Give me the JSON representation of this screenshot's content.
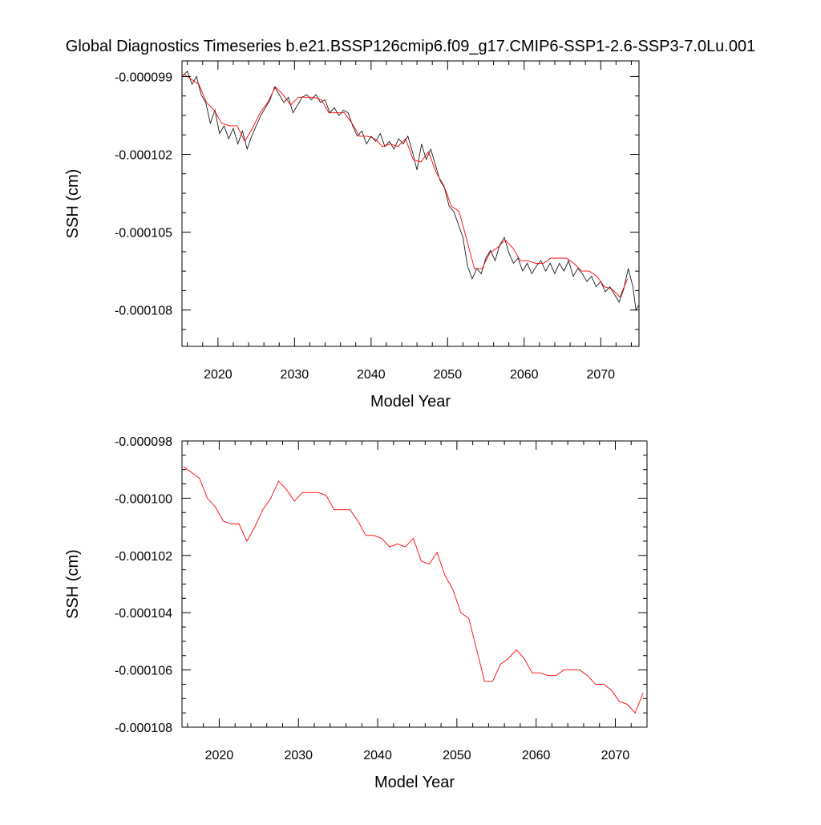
{
  "title": "Global Diagnostics Timeseries b.e21.BSSP126cmip6.f09_g17.CMIP6-SSP1-2.6-SSP3-7.0Lu.001",
  "colors": {
    "monthly": "#000000",
    "annual": "#ff0000",
    "frame": "#000000"
  },
  "chart_data": [
    {
      "type": "line",
      "xlabel": "Model Year",
      "ylabel": "SSH (cm)",
      "xlim": [
        2015.3,
        2075
      ],
      "ylim": [
        -0.0001094,
        -9.84e-05
      ],
      "xticks": [
        2020,
        2030,
        2040,
        2050,
        2060,
        2070
      ],
      "xtick_labels": [
        "2020",
        "2030",
        "2040",
        "2050",
        "2060",
        "2070"
      ],
      "yticks": [
        -9.9e-05,
        -0.000102,
        -0.000105,
        -0.000108
      ],
      "ytick_labels": [
        "-0.000099",
        "-0.000102",
        "-0.000105",
        "-0.000108"
      ],
      "series": [
        {
          "kind": "monthly",
          "color": "#000000",
          "x": [
            2015.3,
            2016.0,
            2016.6,
            2017.2,
            2017.8,
            2018.4,
            2019.0,
            2019.6,
            2020.2,
            2020.8,
            2021.4,
            2022.0,
            2022.6,
            2023.2,
            2023.8,
            2024.4,
            2025.0,
            2025.6,
            2026.2,
            2026.8,
            2027.4,
            2028.0,
            2028.6,
            2029.2,
            2029.8,
            2030.4,
            2031.0,
            2031.6,
            2032.2,
            2032.8,
            2033.4,
            2034.0,
            2034.6,
            2035.2,
            2035.8,
            2036.4,
            2037.0,
            2037.6,
            2038.2,
            2038.8,
            2039.4,
            2040.0,
            2040.6,
            2041.2,
            2041.8,
            2042.4,
            2043.0,
            2043.6,
            2044.2,
            2044.8,
            2045.4,
            2046.0,
            2046.6,
            2047.2,
            2047.8,
            2048.4,
            2049.0,
            2049.6,
            2050.2,
            2050.8,
            2051.4,
            2052.0,
            2052.6,
            2053.2,
            2053.8,
            2054.4,
            2055.0,
            2055.6,
            2056.2,
            2056.8,
            2057.4,
            2058.0,
            2058.6,
            2059.2,
            2059.8,
            2060.4,
            2061.0,
            2061.6,
            2062.2,
            2062.8,
            2063.4,
            2064.0,
            2064.6,
            2065.2,
            2065.8,
            2066.4,
            2067.0,
            2067.6,
            2068.2,
            2068.8,
            2069.4,
            2070.0,
            2070.6,
            2071.2,
            2071.8,
            2072.4,
            2073.0,
            2073.6,
            2074.2,
            2074.6,
            2075.0
          ],
          "y": [
            -9.9e-05,
            -9.88e-05,
            -9.93e-05,
            -9.9e-05,
            -9.97e-05,
            -0.0001,
            -0.0001008,
            -0.0001003,
            -0.0001012,
            -0.0001009,
            -0.0001014,
            -0.000101,
            -0.0001016,
            -0.0001011,
            -0.0001018,
            -0.0001013,
            -0.0001009,
            -0.0001005,
            -0.0001002,
            -9.99e-05,
            -9.94e-05,
            -9.97e-05,
            -0.0001,
            -9.98e-05,
            -0.0001004,
            -0.0001001,
            -9.98e-05,
            -9.97e-05,
            -9.99e-05,
            -9.97e-05,
            -0.0001,
            -9.99e-05,
            -0.0001004,
            -0.0001002,
            -0.0001005,
            -0.0001003,
            -0.0001004,
            -0.0001009,
            -0.0001013,
            -0.0001011,
            -0.0001016,
            -0.0001013,
            -0.0001015,
            -0.0001012,
            -0.0001017,
            -0.0001015,
            -0.0001018,
            -0.0001014,
            -0.0001016,
            -0.0001013,
            -0.0001019,
            -0.0001026,
            -0.0001016,
            -0.0001022,
            -0.0001018,
            -0.0001024,
            -0.000103,
            -0.0001033,
            -0.000104,
            -0.0001042,
            -0.0001047,
            -0.0001052,
            -0.0001063,
            -0.0001068,
            -0.0001064,
            -0.0001066,
            -0.000106,
            -0.0001057,
            -0.0001061,
            -0.0001055,
            -0.0001052,
            -0.0001058,
            -0.0001062,
            -0.000106,
            -0.0001065,
            -0.0001062,
            -0.0001066,
            -0.0001063,
            -0.0001061,
            -0.0001065,
            -0.0001062,
            -0.0001066,
            -0.0001062,
            -0.0001065,
            -0.0001061,
            -0.0001067,
            -0.0001064,
            -0.0001066,
            -0.0001069,
            -0.0001067,
            -0.0001071,
            -0.0001069,
            -0.0001073,
            -0.0001071,
            -0.0001074,
            -0.0001077,
            -0.0001072,
            -0.0001064,
            -0.0001071,
            -0.000108,
            -0.0001078
          ]
        },
        {
          "kind": "annual",
          "color": "#ff0000",
          "x": [
            2015.5,
            2016.5,
            2017.5,
            2018.5,
            2019.5,
            2020.5,
            2021.5,
            2022.5,
            2023.5,
            2024.5,
            2025.5,
            2026.5,
            2027.5,
            2028.5,
            2029.5,
            2030.5,
            2031.5,
            2032.5,
            2033.5,
            2034.5,
            2035.5,
            2036.5,
            2037.5,
            2038.5,
            2039.5,
            2040.5,
            2041.5,
            2042.5,
            2043.5,
            2044.5,
            2045.5,
            2046.5,
            2047.5,
            2048.5,
            2049.5,
            2050.5,
            2051.5,
            2052.5,
            2053.5,
            2054.5,
            2055.5,
            2056.5,
            2057.5,
            2058.5,
            2059.5,
            2060.5,
            2061.5,
            2062.5,
            2063.5,
            2064.5,
            2065.5,
            2066.5,
            2067.5,
            2068.5,
            2069.5,
            2070.5,
            2071.5,
            2072.5,
            2073.5
          ],
          "y": [
            -9.89e-05,
            -9.91e-05,
            -9.93e-05,
            -0.0001,
            -0.0001003,
            -0.0001008,
            -0.0001009,
            -0.0001009,
            -0.0001015,
            -0.000101,
            -0.0001004,
            -0.0001,
            -9.94e-05,
            -9.97e-05,
            -0.0001001,
            -9.98e-05,
            -9.98e-05,
            -9.98e-05,
            -9.99e-05,
            -0.0001004,
            -0.0001004,
            -0.0001004,
            -0.0001008,
            -0.0001013,
            -0.0001013,
            -0.0001014,
            -0.0001017,
            -0.0001016,
            -0.0001017,
            -0.0001014,
            -0.0001022,
            -0.0001023,
            -0.0001019,
            -0.0001027,
            -0.0001032,
            -0.000104,
            -0.0001042,
            -0.0001053,
            -0.0001064,
            -0.0001064,
            -0.0001058,
            -0.0001056,
            -0.0001053,
            -0.0001056,
            -0.0001061,
            -0.0001061,
            -0.0001062,
            -0.0001062,
            -0.000106,
            -0.000106,
            -0.000106,
            -0.0001062,
            -0.0001065,
            -0.0001065,
            -0.0001067,
            -0.0001071,
            -0.0001072,
            -0.0001075,
            -0.0001068
          ]
        }
      ]
    },
    {
      "type": "line",
      "xlabel": "Model Year",
      "ylabel": "SSH (cm)",
      "xlim": [
        2015.3,
        2074.0
      ],
      "ylim": [
        -0.000108,
        -9.8e-05
      ],
      "xticks": [
        2020,
        2030,
        2040,
        2050,
        2060,
        2070
      ],
      "xtick_labels": [
        "2020",
        "2030",
        "2040",
        "2050",
        "2060",
        "2070"
      ],
      "yticks": [
        -9.8e-05,
        -0.0001,
        -0.000102,
        -0.000104,
        -0.000106,
        -0.000108
      ],
      "ytick_labels": [
        "-0.000098",
        "-0.000100",
        "-0.000102",
        "-0.000104",
        "-0.000106",
        "-0.000108"
      ],
      "series": [
        {
          "kind": "annual",
          "color": "#ff0000",
          "x": [
            2015.5,
            2016.5,
            2017.5,
            2018.5,
            2019.5,
            2020.5,
            2021.5,
            2022.5,
            2023.5,
            2024.5,
            2025.5,
            2026.5,
            2027.5,
            2028.5,
            2029.5,
            2030.5,
            2031.5,
            2032.5,
            2033.5,
            2034.5,
            2035.5,
            2036.5,
            2037.5,
            2038.5,
            2039.5,
            2040.5,
            2041.5,
            2042.5,
            2043.5,
            2044.5,
            2045.5,
            2046.5,
            2047.5,
            2048.5,
            2049.5,
            2050.5,
            2051.5,
            2052.5,
            2053.5,
            2054.5,
            2055.5,
            2056.5,
            2057.5,
            2058.5,
            2059.5,
            2060.5,
            2061.5,
            2062.5,
            2063.5,
            2064.5,
            2065.5,
            2066.5,
            2067.5,
            2068.5,
            2069.5,
            2070.5,
            2071.5,
            2072.5,
            2073.5
          ],
          "y": [
            -9.89e-05,
            -9.91e-05,
            -9.93e-05,
            -0.0001,
            -0.0001003,
            -0.0001008,
            -0.0001009,
            -0.0001009,
            -0.0001015,
            -0.000101,
            -0.0001004,
            -0.0001,
            -9.94e-05,
            -9.97e-05,
            -0.0001001,
            -9.98e-05,
            -9.98e-05,
            -9.98e-05,
            -9.99e-05,
            -0.0001004,
            -0.0001004,
            -0.0001004,
            -0.0001008,
            -0.0001013,
            -0.0001013,
            -0.0001014,
            -0.0001017,
            -0.0001016,
            -0.0001017,
            -0.0001014,
            -0.0001022,
            -0.0001023,
            -0.0001019,
            -0.0001027,
            -0.0001032,
            -0.000104,
            -0.0001042,
            -0.0001053,
            -0.0001064,
            -0.0001064,
            -0.0001058,
            -0.0001056,
            -0.0001053,
            -0.0001056,
            -0.0001061,
            -0.0001061,
            -0.0001062,
            -0.0001062,
            -0.000106,
            -0.000106,
            -0.000106,
            -0.0001062,
            -0.0001065,
            -0.0001065,
            -0.0001067,
            -0.0001071,
            -0.0001072,
            -0.0001075,
            -0.0001068
          ]
        }
      ]
    }
  ]
}
